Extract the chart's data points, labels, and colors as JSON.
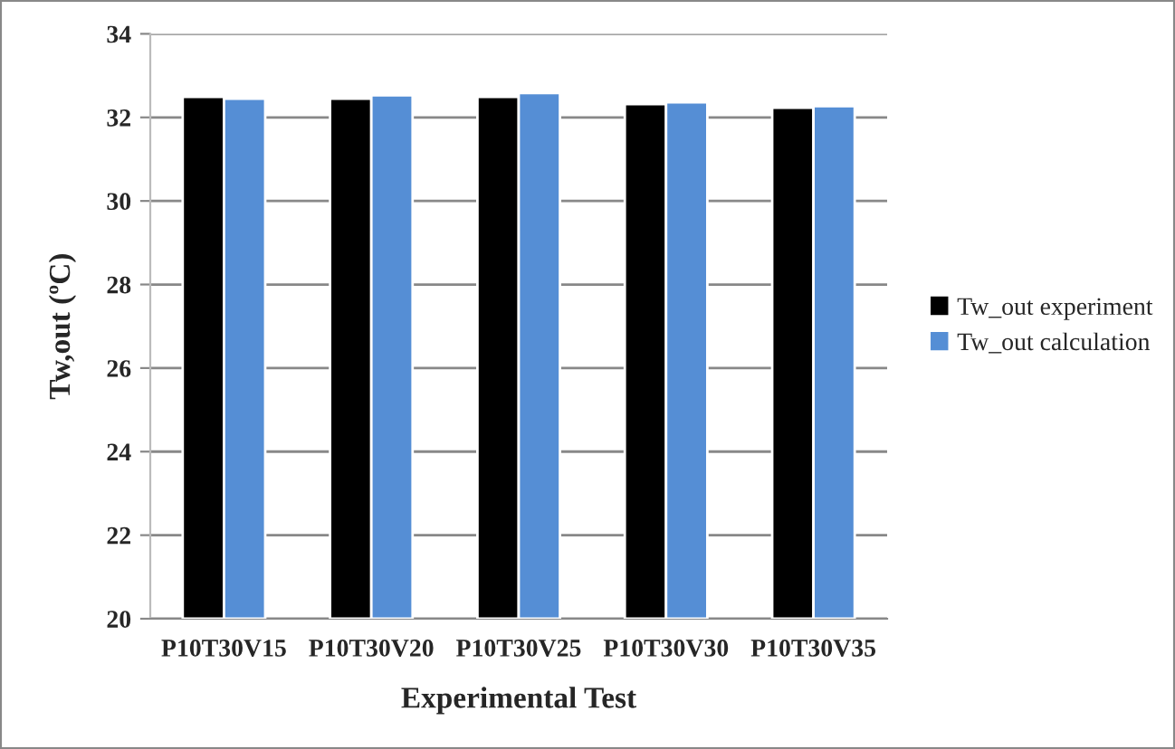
{
  "chart_data": {
    "type": "bar",
    "xlabel": "Experimental Test",
    "ylabel": "Tw,out (ºC)",
    "categories": [
      "P10T30V15",
      "P10T30V20",
      "P10T30V25",
      "P10T30V30",
      "P10T30V35"
    ],
    "series": [
      {
        "name": "Tw_out experiment",
        "color": "#000000",
        "values": [
          32.49,
          32.45,
          32.49,
          32.32,
          32.23
        ]
      },
      {
        "name": "Tw_out calculation",
        "color": "#558ed5",
        "values": [
          32.45,
          32.53,
          32.58,
          32.36,
          32.27
        ]
      }
    ],
    "ylim": [
      20,
      34
    ],
    "yticks": [
      20,
      22,
      24,
      26,
      28,
      30,
      32,
      34
    ],
    "grid": "y",
    "legend": "right"
  }
}
